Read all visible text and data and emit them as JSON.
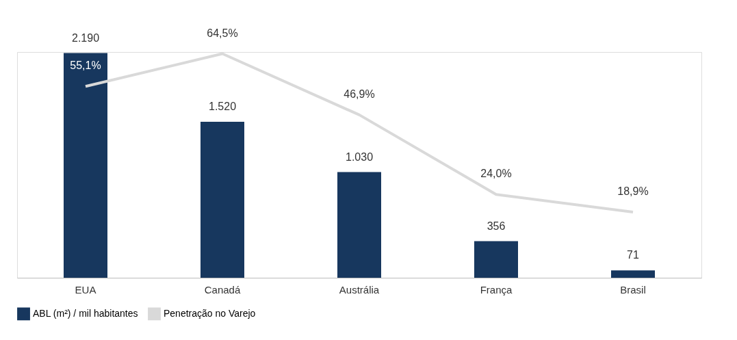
{
  "chart_data": {
    "type": "bar",
    "categories": [
      "EUA",
      "Canadá",
      "Austrália",
      "França",
      "Brasil"
    ],
    "series": [
      {
        "name": "ABL (m²) / mil habitantes",
        "color": "#17375e",
        "values": [
          2190,
          1520,
          1030,
          356,
          71
        ],
        "value_labels": [
          "2.190",
          "1.520",
          "1.030",
          "356",
          "71"
        ]
      },
      {
        "name": "Penetração no Varejo",
        "type": "line",
        "axis": "y2",
        "color": "#d9d9d9",
        "values": [
          55.1,
          64.5,
          46.9,
          24.0,
          18.9
        ],
        "value_labels": [
          "55,1%",
          "64,5%",
          "46,9%",
          "24,0%",
          "18,9%"
        ]
      }
    ],
    "legend": "bottom",
    "grid": false
  }
}
